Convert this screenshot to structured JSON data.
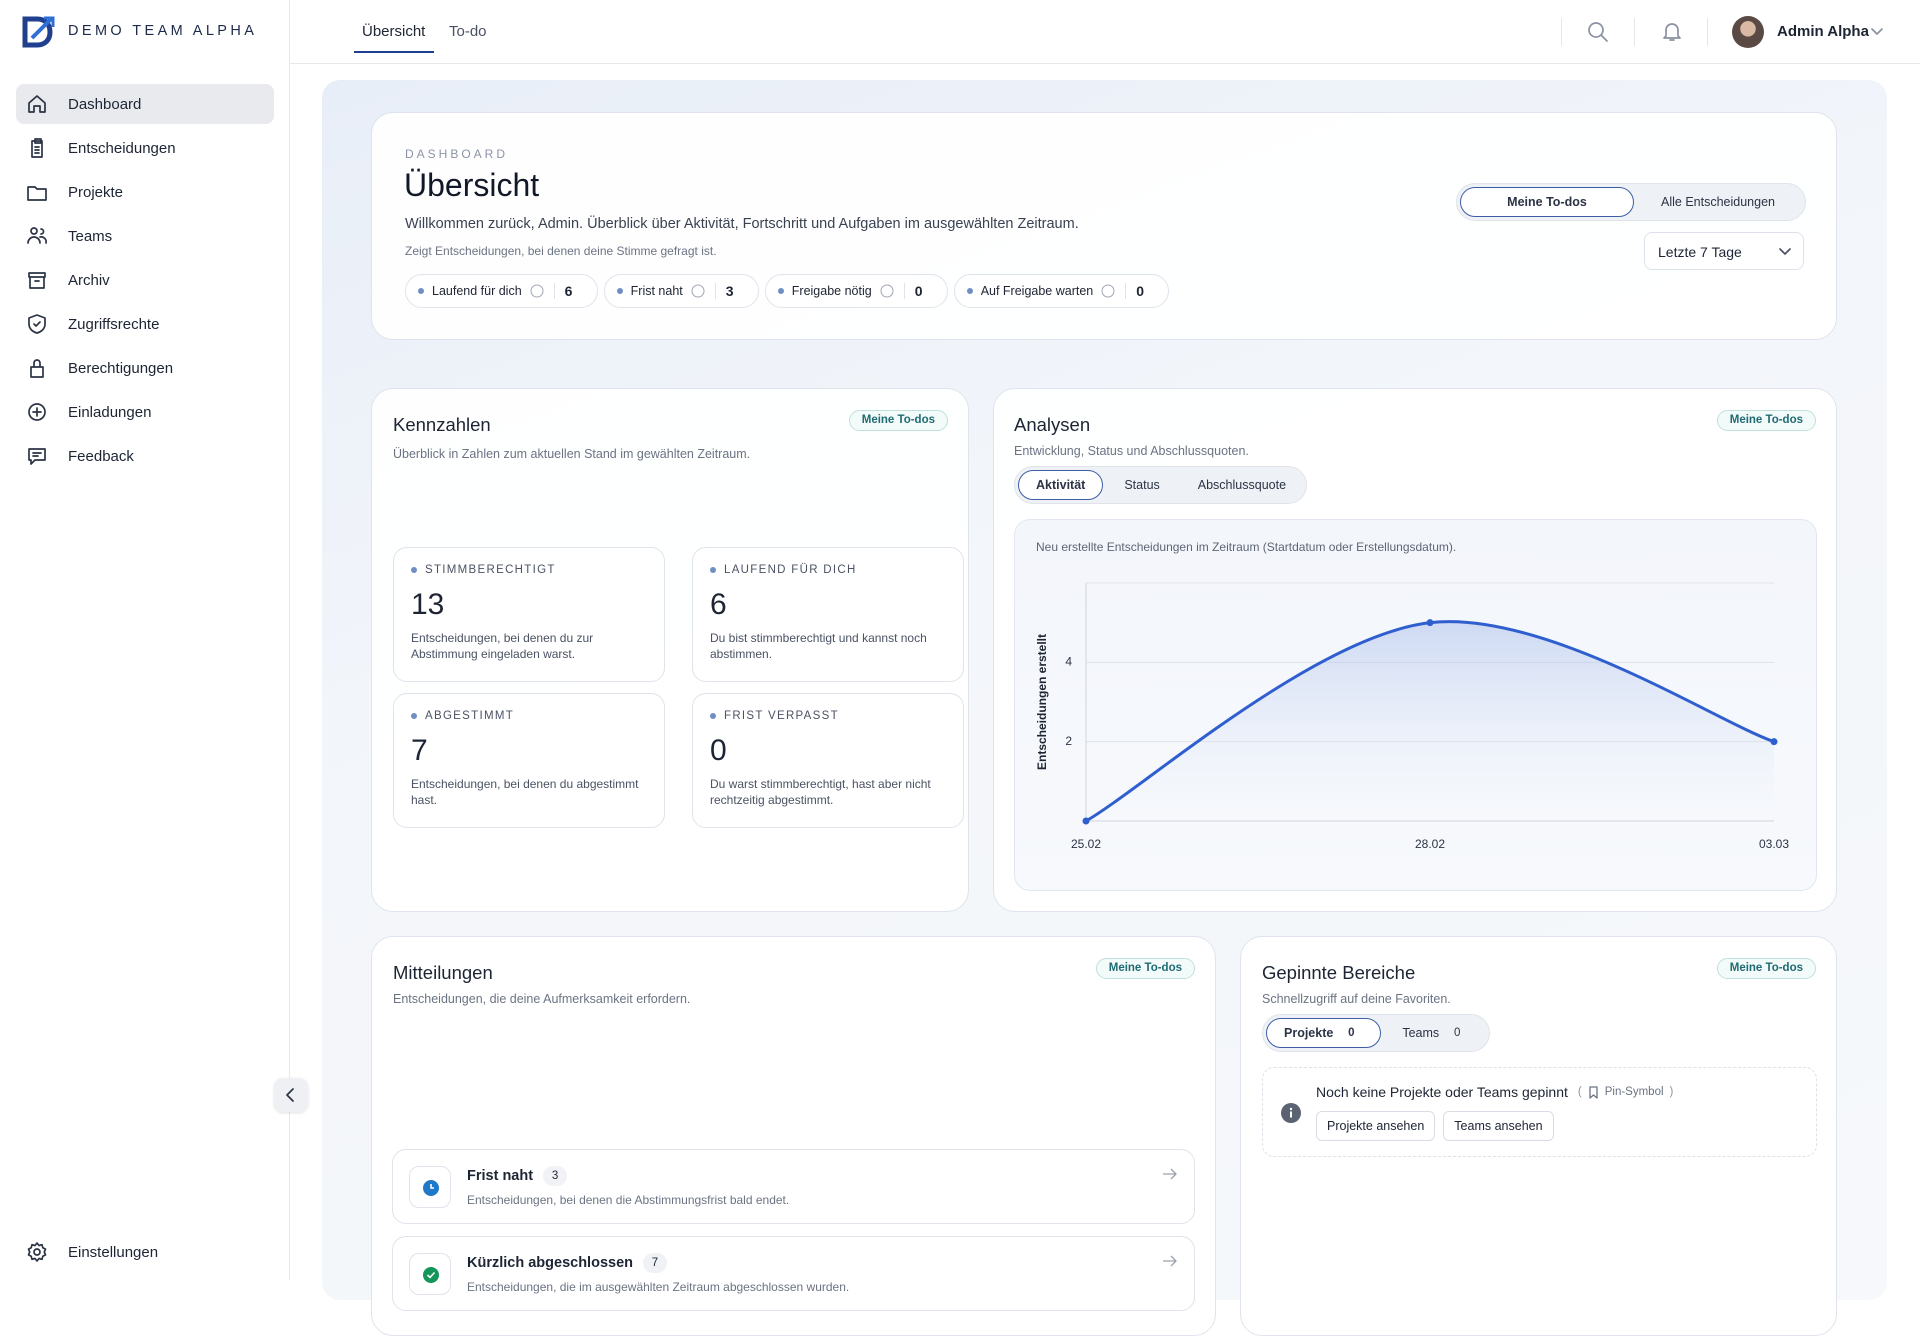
{
  "brand": "DEMO TEAM ALPHA",
  "sidebar": {
    "items": [
      "Dashboard",
      "Entscheidungen",
      "Projekte",
      "Teams",
      "Archiv",
      "Zugriffsrechte",
      "Berechtigungen",
      "Einladungen",
      "Feedback"
    ],
    "settings": "Einstellungen"
  },
  "topnav": {
    "tabs": [
      "Übersicht",
      "To-do"
    ],
    "user": "Admin Alpha"
  },
  "header": {
    "eyebrow": "DASHBOARD",
    "title": "Übersicht",
    "welcome": "Willkommen zurück, Admin. Überblick über Aktivität, Fortschritt und Aufgaben im ausgewählten Zeitraum.",
    "note": "Zeigt Entscheidungen, bei denen deine Stimme gefragt ist.",
    "pills": [
      {
        "label": "Laufend für dich",
        "count": 6
      },
      {
        "label": "Frist naht",
        "count": 3
      },
      {
        "label": "Freigabe nötig",
        "count": 0
      },
      {
        "label": "Auf Freigabe warten",
        "count": 0
      }
    ],
    "toggle": [
      "Meine To-dos",
      "Alle Entscheidungen"
    ],
    "range": "Letzte 7 Tage"
  },
  "kennzahlen": {
    "title": "Kennzahlen",
    "badge": "Meine To-dos",
    "subtitle": "Überblick in Zahlen zum aktuellen Stand im gewählten Zeitraum.",
    "cards": [
      {
        "label": "STIMMBERECHTIGT",
        "value": 13,
        "text": "Entscheidungen, bei denen du zur Abstimmung eingeladen warst."
      },
      {
        "label": "LAUFEND FÜR DICH",
        "value": 6,
        "text": "Du bist stimmberechtigt und kannst noch abstimmen."
      },
      {
        "label": "ABGESTIMMT",
        "value": 7,
        "text": "Entscheidungen, bei denen du abgestimmt hast."
      },
      {
        "label": "FRIST VERPASST",
        "value": 0,
        "text": "Du warst stimmberechtigt, hast aber nicht rechtzeitig abgestimmt."
      }
    ]
  },
  "analysen": {
    "title": "Analysen",
    "badge": "Meine To-dos",
    "subtitle": "Entwicklung, Status und Abschlussquoten.",
    "tabs": [
      "Aktivität",
      "Status",
      "Abschlussquote"
    ]
  },
  "chart_data": {
    "type": "line",
    "subtitle": "Neu erstellte Entscheidungen im Zeitraum (Startdatum oder Erstellungsdatum).",
    "y_label": "Entscheidungen erstellt",
    "categories": [
      "25.02",
      "28.02",
      "03.03"
    ],
    "values": [
      0,
      5,
      2
    ],
    "color": "#2f5fcf",
    "ylim": [
      0,
      6
    ],
    "yticks": [
      2,
      4
    ],
    "grid": true
  },
  "mitteilungen": {
    "title": "Mitteilungen",
    "badge": "Meine To-dos",
    "subtitle": "Entscheidungen, die deine Aufmerksamkeit erfordern.",
    "items": [
      {
        "title": "Frist naht",
        "count": 3,
        "text": "Entscheidungen, bei denen die Abstimmungsfrist bald endet."
      },
      {
        "title": "Kürzlich abgeschlossen",
        "count": 7,
        "text": "Entscheidungen, die im ausgewählten Zeitraum abgeschlossen wurden."
      }
    ]
  },
  "gepinnt": {
    "title": "Gepinnte Bereiche",
    "badge": "Meine To-dos",
    "subtitle": "Schnellzugriff auf deine Favoriten.",
    "tabs": [
      {
        "label": "Projekte",
        "count": 0
      },
      {
        "label": "Teams",
        "count": 0
      }
    ],
    "empty": "Noch keine Projekte oder Teams gepinnt",
    "hint_open": "(",
    "hint": "Pin-Symbol",
    "hint_close": ")",
    "buttons": [
      "Projekte ansehen",
      "Teams ansehen"
    ]
  }
}
